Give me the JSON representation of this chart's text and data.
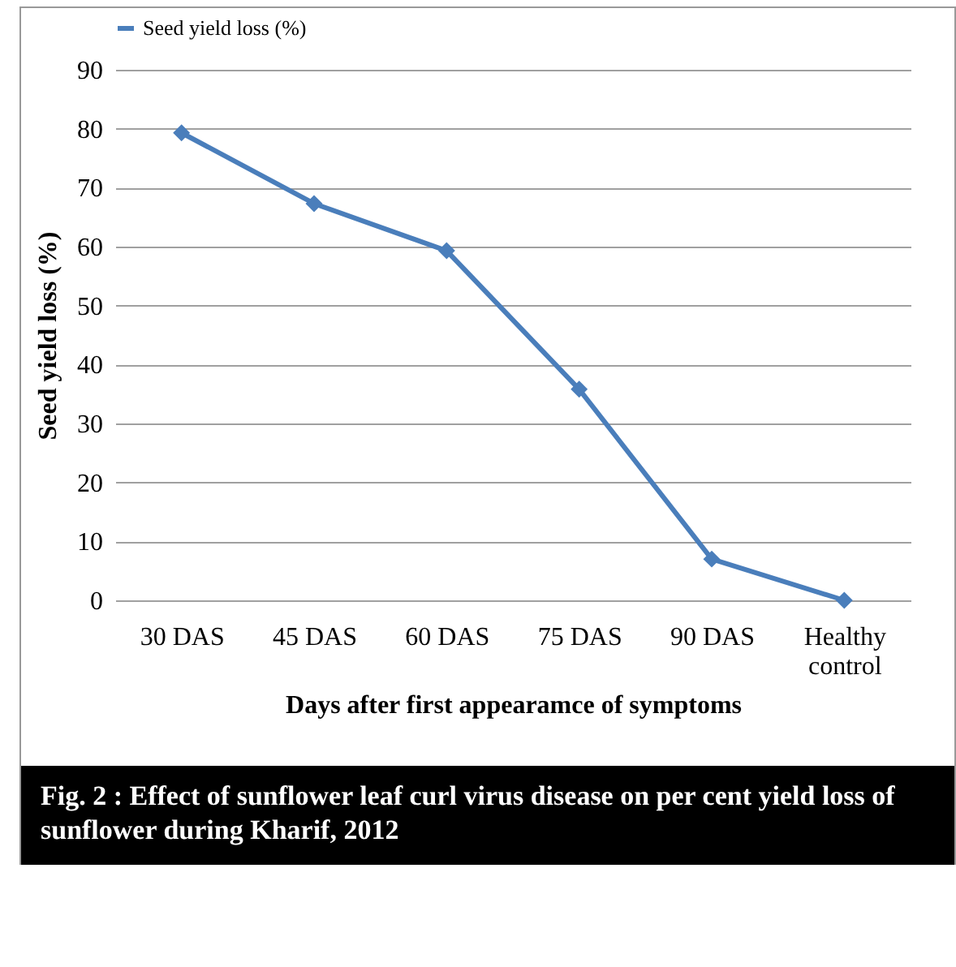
{
  "chart_data": {
    "type": "line",
    "title": "Fig. 2 :  Effect of sunflower leaf curl virus disease on per cent yield loss of sunflower during Kharif, 2012",
    "xlabel": "Days after first appearamce of symptoms",
    "ylabel": "Seed yield loss (%)",
    "categories": [
      "30 DAS",
      "45 DAS",
      "60 DAS",
      "75 DAS",
      "90 DAS",
      "Healthy control"
    ],
    "series": [
      {
        "name": "Seed yield loss (%)",
        "color": "#4a7ebb",
        "values": [
          79.3,
          67.3,
          59.3,
          35.8,
          7.0,
          0
        ]
      }
    ],
    "ylim": [
      0,
      90
    ],
    "yticks": [
      0,
      10,
      20,
      30,
      40,
      50,
      60,
      70,
      80,
      90
    ],
    "grid": "y",
    "legend": "top",
    "marker": "diamond",
    "line_style": "solid"
  }
}
